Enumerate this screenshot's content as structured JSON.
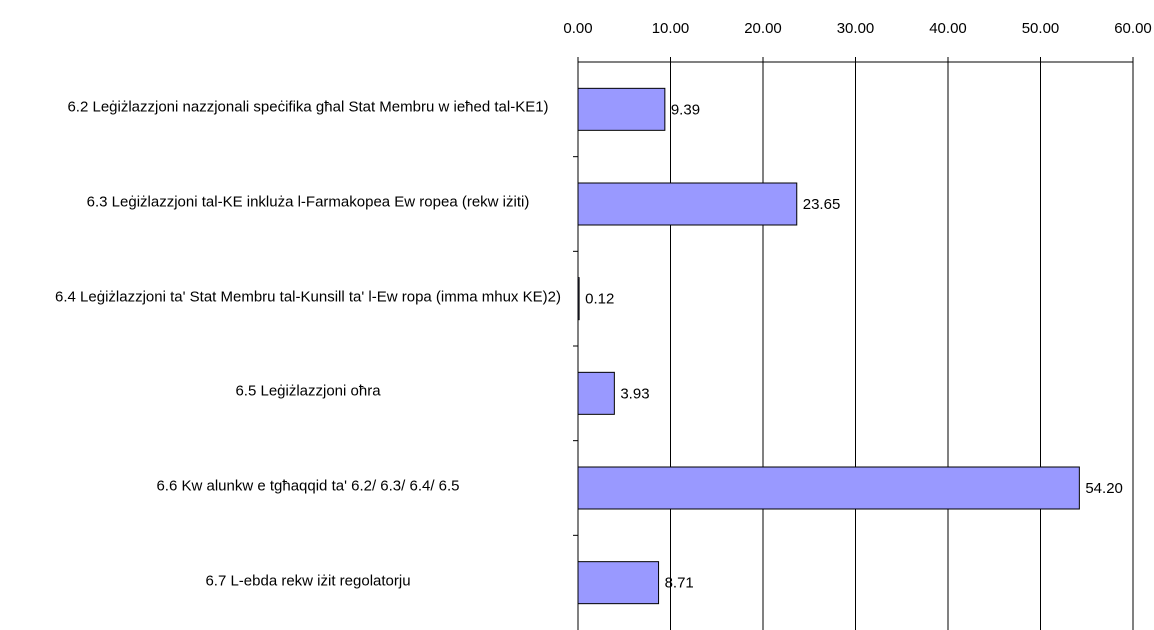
{
  "chart_data": {
    "type": "barh",
    "categories": [
      "6.2 Leġiżlazzjoni nazzjonali speċifika għal Stat Membru w ieħed tal-KE1)",
      "6.3 Leġiżlazzjoni tal-KE inkluża l-Farmakopea Ew ropea (rekw iżiti)",
      "6.4 Leġiżlazzjoni ta' Stat Membru tal-Kunsill ta' l-Ew ropa (imma mhux KE)2)",
      "6.5 Leġiżlazzjoni oħra",
      "6.6 Kw alunkw e tgħaqqid ta' 6.2/ 6.3/ 6.4/ 6.5",
      "6.7 L-ebda rekw iżit regolatorju"
    ],
    "values": [
      9.39,
      23.65,
      0.12,
      3.93,
      54.2,
      8.71
    ],
    "value_labels": [
      "9.39",
      "23.65",
      "0.12",
      "3.93",
      "54.20",
      "8.71"
    ],
    "color": "#9999ff",
    "xlim": [
      0,
      60
    ],
    "xticks": [
      {
        "value": 0,
        "label": "0.00"
      },
      {
        "value": 10,
        "label": "10.00"
      },
      {
        "value": 20,
        "label": "20.00"
      },
      {
        "value": 30,
        "label": "30.00"
      },
      {
        "value": 40,
        "label": "40.00"
      },
      {
        "value": 50,
        "label": "50.00"
      },
      {
        "value": 60,
        "label": "60.00"
      }
    ],
    "grid": true
  }
}
